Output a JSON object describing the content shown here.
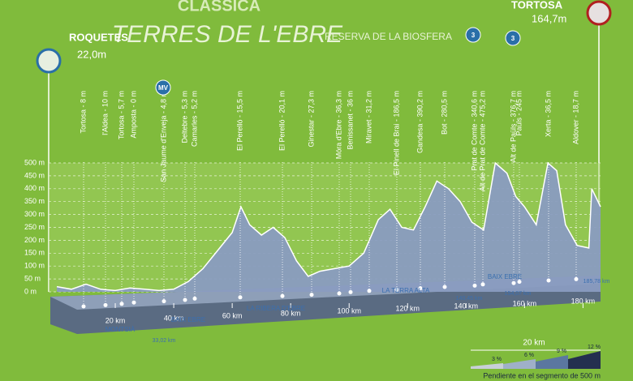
{
  "chart_data": {
    "type": "area",
    "title": "CLASSICA",
    "subtitle": "TERRES DE L'EBRE",
    "tagline": "RESERVA DE LA BIOSFERA",
    "start": {
      "name": "ROQUETES",
      "elevation": "22,0m"
    },
    "finish": {
      "name": "TORTOSA",
      "elevation": "164,7m"
    },
    "x": [
      0,
      5,
      10,
      15,
      20,
      25,
      30,
      35,
      40,
      45,
      50,
      55,
      60,
      63,
      66,
      70,
      74,
      78,
      82,
      86,
      90,
      95,
      100,
      105,
      110,
      114,
      118,
      122,
      126,
      130,
      134,
      138,
      142,
      146,
      150,
      154,
      157,
      160,
      164,
      168,
      171,
      174,
      178,
      182,
      183,
      186
    ],
    "values": [
      20,
      10,
      30,
      10,
      5,
      15,
      10,
      5,
      10,
      40,
      90,
      160,
      230,
      330,
      260,
      220,
      250,
      210,
      120,
      60,
      80,
      90,
      100,
      150,
      280,
      320,
      250,
      240,
      330,
      430,
      400,
      350,
      270,
      240,
      500,
      460,
      370,
      330,
      260,
      500,
      470,
      260,
      180,
      170,
      400,
      330
    ],
    "xlim": [
      0,
      186
    ],
    "ylim": [
      0,
      500
    ],
    "xticks": [
      {
        "value": 20,
        "label": "20 km"
      },
      {
        "value": 40,
        "label": "40 km"
      },
      {
        "value": 60,
        "label": "60 km"
      },
      {
        "value": 80,
        "label": "80 km"
      },
      {
        "value": 100,
        "label": "100 km"
      },
      {
        "value": 120,
        "label": "120 km"
      },
      {
        "value": 140,
        "label": "140 km"
      },
      {
        "value": 160,
        "label": "160 km"
      },
      {
        "value": 180,
        "label": "180 km"
      }
    ],
    "yticks": [
      {
        "value": 0,
        "label": "0 m"
      },
      {
        "value": 50,
        "label": "50 m"
      },
      {
        "value": 100,
        "label": "100 m"
      },
      {
        "value": 150,
        "label": "150 m"
      },
      {
        "value": 200,
        "label": "200 m"
      },
      {
        "value": 250,
        "label": "250 m"
      },
      {
        "value": 300,
        "label": "300 m"
      },
      {
        "value": 350,
        "label": "350 m"
      },
      {
        "value": 400,
        "label": "400 m"
      },
      {
        "value": 450,
        "label": "450 m"
      },
      {
        "value": 500,
        "label": "500 m"
      }
    ],
    "grid": true,
    "color": "#8a9cc0",
    "waypoints": [
      "Tortosa - 8 m",
      "l'Aldea - 10 m",
      "Tortosa - 5,7 m",
      "Amposta - 0 m",
      "San Jaume d'Enveja - 4,8 m",
      "Deltebre - 5,3 m",
      "Camarles - 5,2 m",
      "El Perelló - 15,5 m",
      "El Perelló - 20,1 m",
      "Ginestar - 27,3 m",
      "Móra d'Ebre - 36,3 m",
      "Benissanet - 36 m",
      "Miravet - 31,2 m",
      "El Pinell de Brai - 186,5 m",
      "Gandesa - 390,2 m",
      "Bot - 280,5 m",
      "Prat de Comte - 340,6 m",
      "Alt de Prat de Comte - 475,2 m",
      "Alt de Paüls - 376,7 m",
      "Paüls - 245 m",
      "Xerta - 36,5 m",
      "Aldover - 18,7 m"
    ],
    "regions": [
      "MONTSIÀ",
      "BAIX EBRE",
      "LA RIBERA D'EBRE",
      "LA TERRA ALTA",
      "BAIX EBRE"
    ],
    "distance_markers": [
      "33,02 km",
      "140,45 km",
      "154,07 km",
      "185,78 km"
    ],
    "badges": [
      "MV",
      "3",
      "3"
    ],
    "scale_label": "20 km",
    "legend": {
      "title": "Pendiente en el segmento de 500 m",
      "steps": [
        "3 %",
        "6 %",
        "9 %",
        "12 %"
      ]
    }
  }
}
